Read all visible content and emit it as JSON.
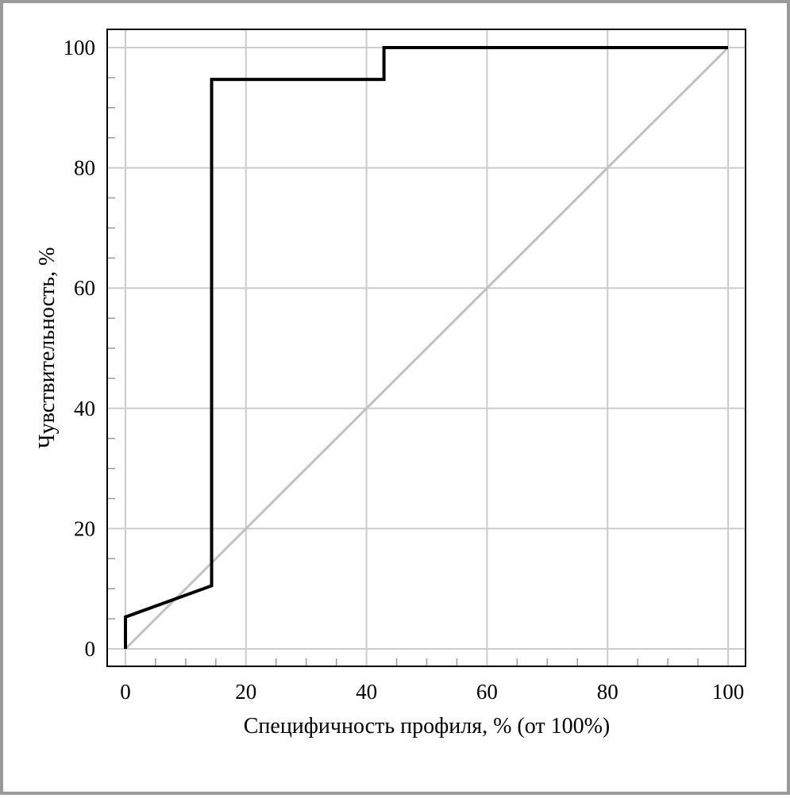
{
  "chart_data": {
    "type": "line",
    "title": "",
    "xlabel": "Специфичность профиля, % (от 100%)",
    "ylabel": "Чувствительность, %",
    "xlim": [
      0,
      100
    ],
    "ylim": [
      0,
      100
    ],
    "x_ticks": [
      0,
      20,
      40,
      60,
      80,
      100
    ],
    "y_ticks": [
      0,
      20,
      40,
      60,
      80,
      100
    ],
    "x_tick_labels": [
      "0",
      "20",
      "40",
      "60",
      "80",
      "100"
    ],
    "y_tick_labels": [
      "0",
      "20",
      "40",
      "60",
      "80",
      "100"
    ],
    "x_minor_step": 5,
    "y_minor_step": 5,
    "grid": true,
    "legend": "none",
    "series": [
      {
        "color": "#000000",
        "x": [
          0,
          0,
          14.3,
          14.3,
          42.9,
          42.9,
          100
        ],
        "y": [
          0,
          5.3,
          10.5,
          94.7,
          94.7,
          100,
          100
        ]
      },
      {
        "color": "#c0c0c0",
        "x": [
          0,
          100
        ],
        "y": [
          0,
          100
        ]
      }
    ],
    "colors": {
      "grid": "#cccccc",
      "axis": "#000000",
      "diagonal": "#c0c0c0",
      "roc": "#000000"
    }
  }
}
